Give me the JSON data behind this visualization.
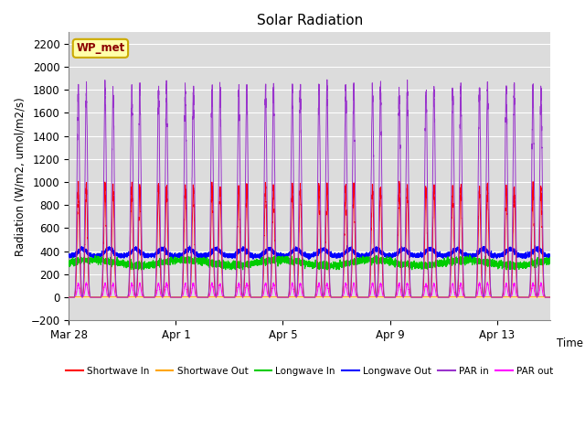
{
  "title": "Solar Radiation",
  "ylabel": "Radiation (W/m2, umol/m2/s)",
  "xlabel": "Time",
  "ylim": [
    -200,
    2300
  ],
  "yticks": [
    -200,
    0,
    200,
    400,
    600,
    800,
    1000,
    1200,
    1400,
    1600,
    1800,
    2000,
    2200
  ],
  "xtick_labels": [
    "Mar 28",
    "Apr 1",
    "Apr 5",
    "Apr 9",
    "Apr 13"
  ],
  "xtick_positions": [
    0,
    4,
    8,
    12,
    16
  ],
  "annotation_label": "WP_met",
  "plot_bg_color": "#dcdcdc",
  "fig_bg_color": "#ffffff",
  "series": {
    "shortwave_in": {
      "color": "#ff0000",
      "label": "Shortwave In"
    },
    "shortwave_out": {
      "color": "#ffa500",
      "label": "Shortwave Out"
    },
    "longwave_in": {
      "color": "#00cc00",
      "label": "Longwave In"
    },
    "longwave_out": {
      "color": "#0000ff",
      "label": "Longwave Out"
    },
    "par_in": {
      "color": "#9933cc",
      "label": "PAR in"
    },
    "par_out": {
      "color": "#ff00ff",
      "label": "PAR out"
    }
  },
  "num_days": 18,
  "pts_per_day": 288
}
